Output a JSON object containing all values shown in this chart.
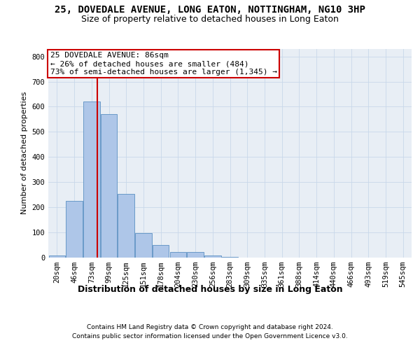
{
  "title_line1": "25, DOVEDALE AVENUE, LONG EATON, NOTTINGHAM, NG10 3HP",
  "title_line2": "Size of property relative to detached houses in Long Eaton",
  "xlabel": "Distribution of detached houses by size in Long Eaton",
  "ylabel": "Number of detached properties",
  "bar_labels": [
    "20sqm",
    "46sqm",
    "73sqm",
    "99sqm",
    "125sqm",
    "151sqm",
    "178sqm",
    "204sqm",
    "230sqm",
    "256sqm",
    "283sqm",
    "309sqm",
    "335sqm",
    "361sqm",
    "388sqm",
    "414sqm",
    "440sqm",
    "466sqm",
    "493sqm",
    "519sqm",
    "545sqm"
  ],
  "bar_values": [
    8,
    225,
    620,
    570,
    252,
    95,
    48,
    22,
    22,
    8,
    1,
    0,
    0,
    0,
    0,
    0,
    0,
    0,
    0,
    0,
    0
  ],
  "bar_color": "#aec6e8",
  "bar_edge_color": "#5a8fc2",
  "vline_x_index": 2.35,
  "annotation_text_line1": "25 DOVEDALE AVENUE: 86sqm",
  "annotation_text_line2": "← 26% of detached houses are smaller (484)",
  "annotation_text_line3": "73% of semi-detached houses are larger (1,345) →",
  "annotation_box_color": "#ffffff",
  "annotation_box_edge": "#cc0000",
  "vline_color": "#cc0000",
  "grid_color": "#c8d8ea",
  "background_color": "#e8eef5",
  "ylim": [
    0,
    830
  ],
  "yticks": [
    0,
    100,
    200,
    300,
    400,
    500,
    600,
    700,
    800
  ],
  "footer_line1": "Contains HM Land Registry data © Crown copyright and database right 2024.",
  "footer_line2": "Contains public sector information licensed under the Open Government Licence v3.0.",
  "title1_fontsize": 10,
  "title2_fontsize": 9,
  "xlabel_fontsize": 9,
  "ylabel_fontsize": 8,
  "tick_fontsize": 7.5,
  "annotation_fontsize": 8,
  "footer_fontsize": 6.5
}
